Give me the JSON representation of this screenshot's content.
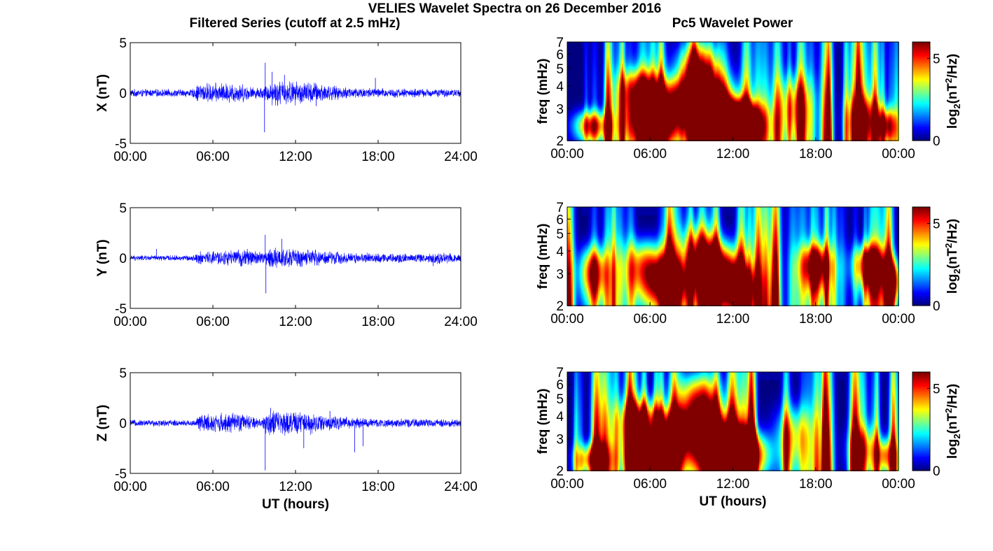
{
  "figure": {
    "title": "VELIES Wavelet Spectra on 26 December 2016",
    "left_title": "Filtered Series (cutoff at 2.5 mHz)",
    "right_title": "Pc5 Wavelet Power"
  },
  "colors": {
    "trace": "#0000ff",
    "colormap": "jet",
    "background": "#ffffff"
  },
  "chart_data": [
    {
      "type": "line",
      "ylabel": "X (nT)",
      "xlabel": "",
      "x_ticks": [
        "00:00",
        "06:00",
        "12:00",
        "18:00",
        "24:00"
      ],
      "y_ticks": [
        "-5",
        "0",
        "5"
      ],
      "xlim": [
        0,
        24
      ],
      "ylim": [
        -5,
        5
      ],
      "series": [
        {
          "values_note": "",
          "baseline": 0,
          "envelope": [
            [
              0,
              0.35
            ],
            [
              4.5,
              0.35
            ],
            [
              5.0,
              0.9
            ],
            [
              8.0,
              0.9
            ],
            [
              9.0,
              0.5
            ],
            [
              9.7,
              0.6
            ],
            [
              10.4,
              1.2
            ],
            [
              13.5,
              1.0
            ],
            [
              15.0,
              0.6
            ],
            [
              18.0,
              0.45
            ],
            [
              24.0,
              0.35
            ]
          ],
          "spikes": [
            [
              9.75,
              -3.9
            ],
            [
              9.8,
              3.0
            ],
            [
              10.3,
              2.1
            ],
            [
              11.2,
              1.8
            ],
            [
              13.5,
              -1.3
            ],
            [
              17.8,
              1.5
            ],
            [
              24.0,
              -1.2
            ]
          ]
        }
      ]
    },
    {
      "type": "line",
      "ylabel": "Y (nT)",
      "xlabel": "",
      "x_ticks": [
        "00:00",
        "06:00",
        "12:00",
        "18:00",
        "24:00"
      ],
      "y_ticks": [
        "-5",
        "0",
        "5"
      ],
      "xlim": [
        0,
        24
      ],
      "ylim": [
        -5,
        5
      ],
      "series": [
        {
          "baseline": 0,
          "envelope": [
            [
              0,
              0.25
            ],
            [
              4.5,
              0.25
            ],
            [
              5.0,
              0.6
            ],
            [
              8.5,
              0.8
            ],
            [
              9.7,
              0.6
            ],
            [
              10.4,
              1.0
            ],
            [
              13.0,
              0.8
            ],
            [
              16.0,
              0.5
            ],
            [
              21.5,
              0.4
            ],
            [
              22.5,
              0.6
            ],
            [
              24.0,
              0.4
            ]
          ],
          "spikes": [
            [
              9.8,
              2.3
            ],
            [
              9.85,
              -3.5
            ],
            [
              11.0,
              1.9
            ],
            [
              1.9,
              0.9
            ],
            [
              8.5,
              0.9
            ],
            [
              22.0,
              -0.8
            ],
            [
              24.0,
              1.0
            ]
          ]
        }
      ]
    },
    {
      "type": "line",
      "ylabel": "Z (nT)",
      "xlabel": "UT (hours)",
      "x_ticks": [
        "00:00",
        "06:00",
        "12:00",
        "18:00",
        "24:00"
      ],
      "y_ticks": [
        "-5",
        "0",
        "5"
      ],
      "xlim": [
        0,
        24
      ],
      "ylim": [
        -5,
        5
      ],
      "series": [
        {
          "baseline": 0,
          "envelope": [
            [
              0,
              0.3
            ],
            [
              4.8,
              0.3
            ],
            [
              5.0,
              0.9
            ],
            [
              8.0,
              0.9
            ],
            [
              9.5,
              0.4
            ],
            [
              10.0,
              1.2
            ],
            [
              13.0,
              1.0
            ],
            [
              15.0,
              0.6
            ],
            [
              18.0,
              0.4
            ],
            [
              24.0,
              0.35
            ]
          ],
          "spikes": [
            [
              9.8,
              -4.7
            ],
            [
              10.2,
              1.5
            ],
            [
              12.6,
              -2.5
            ],
            [
              16.3,
              -2.9
            ],
            [
              16.9,
              -2.3
            ],
            [
              14.5,
              1.2
            ],
            [
              24.0,
              -0.8
            ]
          ]
        }
      ]
    },
    {
      "type": "heatmap",
      "ylabel": "freq (mHz)",
      "xlabel": "",
      "x_ticks": [
        "00:00",
        "06:00",
        "12:00",
        "18:00",
        "00:00"
      ],
      "y_ticks": [
        "2",
        "3",
        "4",
        "5",
        "6",
        "7"
      ],
      "xlim": [
        0,
        24
      ],
      "ylim": [
        2,
        7
      ],
      "y_scale": "log",
      "colorbar_label": "log2(nT^2/Hz)",
      "colorbar_ticks": [
        "0",
        "5"
      ],
      "clim": [
        0,
        6
      ],
      "hotspots": [
        [
          1.8,
          2.4,
          0.9,
          0.35,
          5.0
        ],
        [
          5.2,
          3.6,
          1.0,
          0.9,
          5.5
        ],
        [
          6.2,
          2.3,
          1.1,
          0.5,
          6.0
        ],
        [
          7.6,
          3.2,
          1.0,
          0.8,
          5.0
        ],
        [
          9.5,
          4.5,
          1.1,
          1.5,
          5.5
        ],
        [
          10.6,
          3.0,
          1.2,
          1.0,
          5.5
        ],
        [
          11.8,
          2.5,
          1.3,
          0.6,
          6.0
        ],
        [
          12.9,
          2.4,
          1.0,
          0.5,
          5.0
        ],
        [
          16.5,
          3.0,
          0.9,
          1.0,
          3.5
        ],
        [
          21.5,
          2.6,
          0.8,
          0.6,
          3.5
        ],
        [
          23.2,
          2.4,
          0.5,
          0.4,
          4.5
        ]
      ]
    },
    {
      "type": "heatmap",
      "ylabel": "freq (mHz)",
      "xlabel": "",
      "x_ticks": [
        "00:00",
        "06:00",
        "12:00",
        "18:00",
        "00:00"
      ],
      "y_ticks": [
        "2",
        "3",
        "4",
        "5",
        "6",
        "7"
      ],
      "xlim": [
        0,
        24
      ],
      "ylim": [
        2,
        7
      ],
      "y_scale": "log",
      "colorbar_label": "log2(nT^2/Hz)",
      "colorbar_ticks": [
        "0",
        "5"
      ],
      "clim": [
        0,
        6
      ],
      "hotspots": [
        [
          1.9,
          3.0,
          0.7,
          0.8,
          5.5
        ],
        [
          5.8,
          3.2,
          1.2,
          0.9,
          5.0
        ],
        [
          7.3,
          2.6,
          1.0,
          0.6,
          5.0
        ],
        [
          9.6,
          3.6,
          1.0,
          1.2,
          4.5
        ],
        [
          11.3,
          3.0,
          1.1,
          0.9,
          6.0
        ],
        [
          12.4,
          2.5,
          0.8,
          0.5,
          5.0
        ],
        [
          18.0,
          3.3,
          0.8,
          0.7,
          5.5
        ],
        [
          21.9,
          3.3,
          0.8,
          0.7,
          6.0
        ],
        [
          23.6,
          2.7,
          0.4,
          0.6,
          5.5
        ]
      ]
    },
    {
      "type": "heatmap",
      "ylabel": "freq (mHz)",
      "xlabel": "UT (hours)",
      "x_ticks": [
        "00:00",
        "06:00",
        "12:00",
        "18:00",
        "00:00"
      ],
      "y_ticks": [
        "2",
        "3",
        "4",
        "5",
        "6",
        "7"
      ],
      "xlim": [
        0,
        24
      ],
      "ylim": [
        2,
        7
      ],
      "y_scale": "log",
      "colorbar_label": "log2(nT^2/Hz)",
      "colorbar_ticks": [
        "0",
        "5"
      ],
      "clim": [
        0,
        6
      ],
      "hotspots": [
        [
          1.8,
          2.3,
          0.8,
          0.35,
          4.5
        ],
        [
          5.2,
          3.6,
          1.0,
          0.9,
          5.5
        ],
        [
          6.2,
          2.3,
          1.1,
          0.5,
          6.0
        ],
        [
          7.6,
          3.2,
          1.0,
          0.8,
          5.0
        ],
        [
          9.5,
          4.6,
          1.1,
          1.5,
          5.5
        ],
        [
          10.6,
          3.0,
          1.2,
          1.0,
          5.5
        ],
        [
          11.9,
          2.5,
          1.3,
          0.6,
          6.0
        ],
        [
          13.0,
          2.4,
          1.0,
          0.5,
          5.0
        ],
        [
          16.4,
          3.0,
          0.9,
          1.0,
          3.5
        ],
        [
          21.5,
          2.6,
          0.8,
          0.6,
          3.0
        ],
        [
          23.1,
          2.4,
          0.5,
          0.4,
          4.0
        ]
      ]
    }
  ]
}
